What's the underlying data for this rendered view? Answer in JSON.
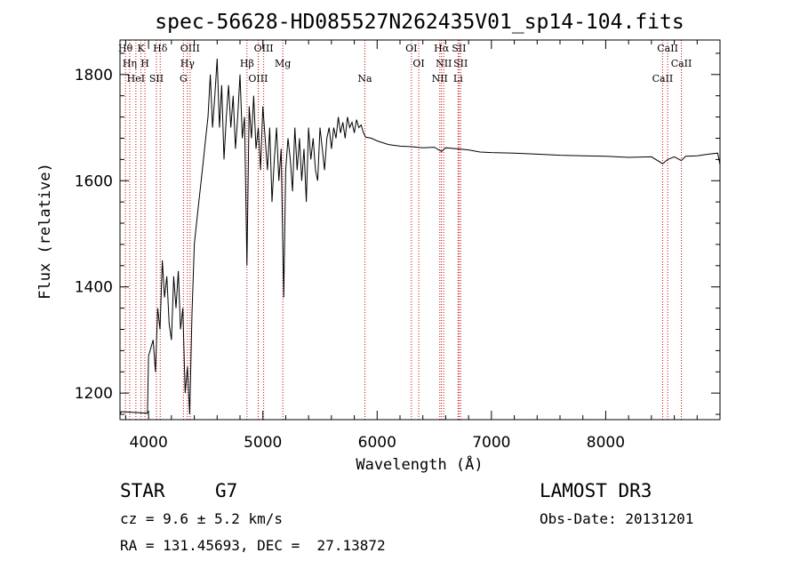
{
  "chart_data": {
    "type": "line",
    "title": "spec-56628-HD085527N262435V01_sp14-104.fits",
    "xlabel": "Wavelength (Å)",
    "ylabel": "Flux (relative)",
    "xlim": [
      3750,
      9000
    ],
    "ylim": [
      1150,
      1865
    ],
    "x_ticks": [
      4000,
      5000,
      6000,
      7000,
      8000
    ],
    "y_ticks": [
      1200,
      1400,
      1600,
      1800
    ],
    "grid": false,
    "series": [
      {
        "x": [
          3750,
          3760,
          3990,
          4000,
          4040,
          4060,
          4080,
          4100,
          4120,
          4140,
          4160,
          4180,
          4200,
          4220,
          4240,
          4260,
          4280,
          4300,
          4320,
          4340,
          4360,
          4380,
          4400,
          4420,
          4440,
          4460,
          4480,
          4500,
          4520,
          4540,
          4560,
          4580,
          4600,
          4620,
          4640,
          4660,
          4680,
          4700,
          4720,
          4740,
          4760,
          4780,
          4800,
          4820,
          4840,
          4861,
          4880,
          4900,
          4920,
          4940,
          4960,
          4980,
          5000,
          5020,
          5040,
          5060,
          5080,
          5100,
          5120,
          5140,
          5160,
          5183,
          5200,
          5220,
          5240,
          5260,
          5280,
          5300,
          5320,
          5340,
          5360,
          5380,
          5400,
          5420,
          5440,
          5460,
          5480,
          5500,
          5520,
          5540,
          5560,
          5580,
          5600,
          5620,
          5640,
          5660,
          5680,
          5700,
          5720,
          5740,
          5760,
          5780,
          5800,
          5820,
          5840,
          5860,
          5880,
          5900,
          5950,
          6000,
          6100,
          6200,
          6300,
          6400,
          6500,
          6563,
          6600,
          6700,
          6800,
          6900,
          7000,
          7200,
          7400,
          7600,
          7800,
          8000,
          8200,
          8400,
          8498,
          8542,
          8600,
          8662,
          8700,
          8800,
          8900,
          8980,
          9000
        ],
        "y": [
          1160,
          1165,
          1162,
          1270,
          1300,
          1240,
          1360,
          1320,
          1450,
          1380,
          1420,
          1330,
          1300,
          1420,
          1360,
          1430,
          1320,
          1360,
          1200,
          1250,
          1160,
          1350,
          1480,
          1520,
          1560,
          1600,
          1640,
          1680,
          1720,
          1800,
          1700,
          1760,
          1830,
          1700,
          1780,
          1640,
          1720,
          1780,
          1700,
          1760,
          1660,
          1720,
          1800,
          1680,
          1720,
          1440,
          1740,
          1680,
          1760,
          1660,
          1700,
          1620,
          1740,
          1680,
          1620,
          1700,
          1560,
          1640,
          1700,
          1600,
          1660,
          1380,
          1620,
          1680,
          1640,
          1580,
          1700,
          1620,
          1680,
          1600,
          1660,
          1560,
          1700,
          1640,
          1680,
          1620,
          1600,
          1700,
          1660,
          1620,
          1680,
          1700,
          1660,
          1700,
          1680,
          1720,
          1690,
          1710,
          1680,
          1720,
          1700,
          1710,
          1690,
          1715,
          1700,
          1705,
          1690,
          1682,
          1680,
          1675,
          1668,
          1665,
          1664,
          1662,
          1663,
          1655,
          1662,
          1660,
          1658,
          1654,
          1653,
          1652,
          1650,
          1648,
          1647,
          1646,
          1644,
          1645,
          1632,
          1640,
          1645,
          1638,
          1646,
          1647,
          1650,
          1652,
          1630
        ]
      }
    ],
    "line_markers": [
      {
        "label": "Hθ",
        "wavelength": 3798
      },
      {
        "label": "Hη",
        "wavelength": 3835
      },
      {
        "label": "HeI",
        "wavelength": 3889
      },
      {
        "label": "K",
        "wavelength": 3934
      },
      {
        "label": "H",
        "wavelength": 3968
      },
      {
        "label": "SII",
        "wavelength": 4069
      },
      {
        "label": "Hδ",
        "wavelength": 4102
      },
      {
        "label": "Hγ",
        "wavelength": 4340
      },
      {
        "label": "G",
        "wavelength": 4305
      },
      {
        "label": "OIII",
        "wavelength": 4363
      },
      {
        "label": "Hβ",
        "wavelength": 4861
      },
      {
        "label": "OIII",
        "wavelength": 4959
      },
      {
        "label": "OIII",
        "wavelength": 5007
      },
      {
        "label": "Mg",
        "wavelength": 5175
      },
      {
        "label": "Na",
        "wavelength": 5893
      },
      {
        "label": "OI",
        "wavelength": 6300
      },
      {
        "label": "OI",
        "wavelength": 6364
      },
      {
        "label": "NII",
        "wavelength": 6548
      },
      {
        "label": "Hα",
        "wavelength": 6563
      },
      {
        "label": "NII",
        "wavelength": 6583
      },
      {
        "label": "Li",
        "wavelength": 6708
      },
      {
        "label": "SII",
        "wavelength": 6716
      },
      {
        "label": "SII",
        "wavelength": 6731
      },
      {
        "label": "CaII",
        "wavelength": 8498
      },
      {
        "label": "CaII",
        "wavelength": 8542
      },
      {
        "label": "CaII",
        "wavelength": 8662
      }
    ]
  },
  "info": {
    "object_class": "STAR",
    "subclass": "G7",
    "survey": "LAMOST DR3",
    "cz": "cz = 9.6 ± 5.2 km/s",
    "obs_date": "Obs-Date: 20131201",
    "coords": "RA = 131.45693, DEC =  27.13872"
  },
  "colors": {
    "line": "#000000",
    "marker": "#cc0000",
    "axes": "#000000"
  }
}
